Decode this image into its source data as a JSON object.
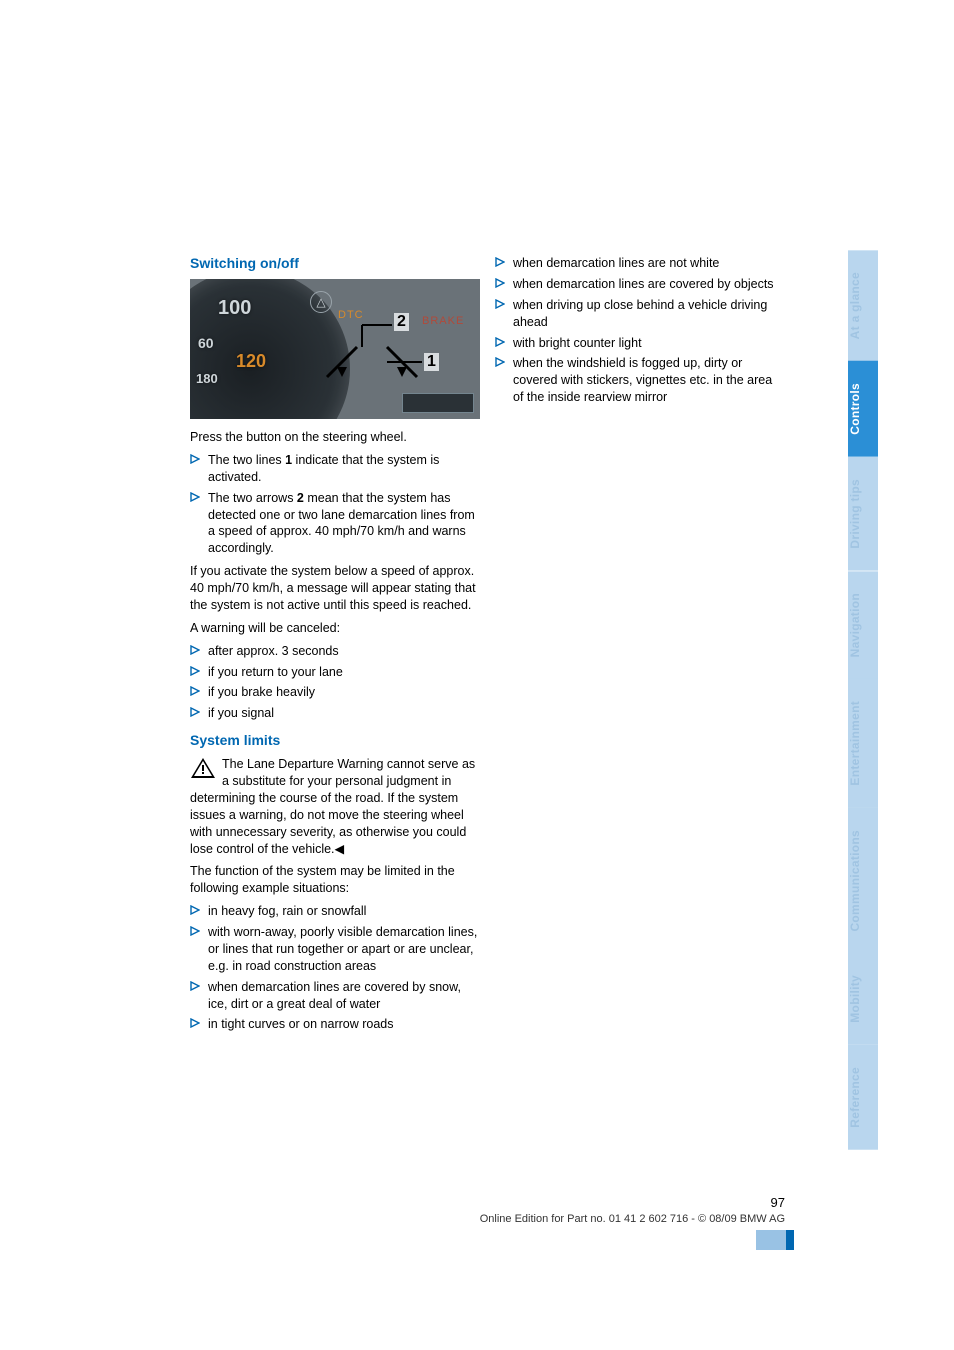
{
  "colors": {
    "heading": "#0067b1",
    "bullet_stroke": "#0067b1",
    "tab_inactive_bg": "#b9d6ee",
    "tab_inactive_fg": "#a0c4e2",
    "tab_active_bg": "#2b8fd6",
    "tab_active_fg": "#ffffff",
    "footer_bar_light": "#99c2e4",
    "footer_bar_dark": "#0067b1"
  },
  "left": {
    "heading1": "Switching on/off",
    "dash": {
      "nums": [
        "100",
        "60",
        "120",
        "180"
      ],
      "labels": {
        "dtc": "DTC",
        "brake": "BRAKE"
      },
      "badge_symbol": "△",
      "callouts": {
        "one": "1",
        "two": "2"
      }
    },
    "p1": "Press the button on the steering wheel.",
    "list1": [
      {
        "pre": "The two lines ",
        "bold": "1",
        "post": " indicate that the system is activated."
      },
      {
        "pre": "The two arrows ",
        "bold": "2",
        "post": " mean that the system has detected one or two lane demarcation lines from a speed of approx. 40 mph/70 km/h and warns accordingly."
      }
    ],
    "p2": "If you activate the system below a speed of approx. 40 mph/70 km/h, a message will appear stating that the system is not active until this speed is reached.",
    "p3": "A warning will be canceled:",
    "list2": [
      "after approx. 3 seconds",
      "if you return to your lane",
      "if you brake heavily",
      "if you signal"
    ],
    "heading2": "System limits",
    "warn": "The Lane Departure Warning cannot serve as a substitute for your personal judgment in determining the course of the road. If the system issues a warning, do not move the steering wheel with unnecessary severity, as otherwise you could lose control of the vehicle.◀",
    "p4": "The function of the system may be limited in the following example situations:",
    "list3": [
      "in heavy fog, rain or snowfall",
      "with worn-away, poorly visible demarcation lines, or lines that run together or apart or are unclear, e.g. in road construction areas",
      "when demarcation lines are covered by snow, ice, dirt or a great deal of water",
      "in tight curves or on narrow roads"
    ]
  },
  "right": {
    "list": [
      "when demarcation lines are not white",
      "when demarcation lines are covered by objects",
      "when driving up close behind a vehicle driving ahead",
      "with bright counter light",
      "when the windshield is fogged up, dirty or covered with stickers, vignettes etc. in the area of the inside rearview mirror"
    ]
  },
  "footer": {
    "page": "97",
    "line": "Online Edition for Part no. 01 41 2 602 716 - © 08/09 BMW AG"
  },
  "tabs": [
    {
      "label": "At a glance",
      "active": false
    },
    {
      "label": "Controls",
      "active": true
    },
    {
      "label": "Driving tips",
      "active": false
    },
    {
      "label": "Navigation",
      "active": false
    },
    {
      "label": "Entertainment",
      "active": false
    },
    {
      "label": "Communications",
      "active": false
    },
    {
      "label": "Mobility",
      "active": false
    },
    {
      "label": "Reference",
      "active": false
    }
  ]
}
